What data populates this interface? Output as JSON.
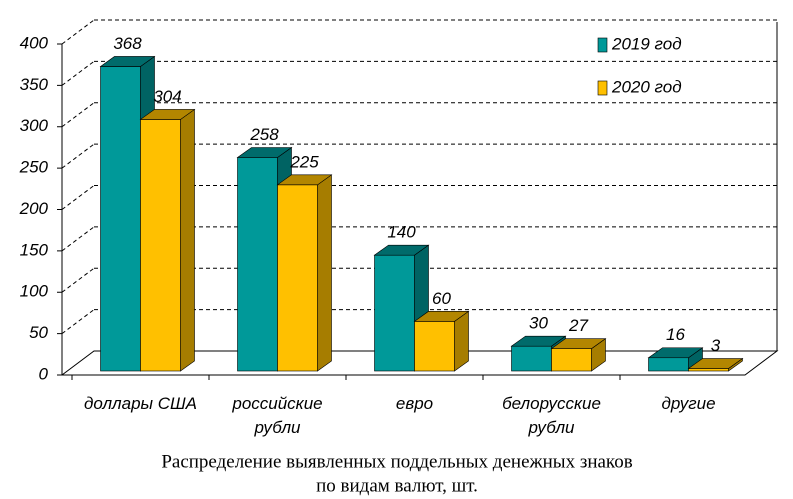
{
  "chart_data": {
    "type": "bar3d",
    "categories": [
      "доллары США",
      "российские\nрубли",
      "евро",
      "белорусские\nрубли",
      "другие"
    ],
    "series": [
      {
        "name": "2019 год",
        "color": "#009999",
        "values": [
          368,
          258,
          140,
          30,
          16
        ]
      },
      {
        "name": "2020 год",
        "color": "#ffc000",
        "values": [
          304,
          225,
          60,
          27,
          3
        ]
      }
    ],
    "ylim": [
      0,
      400
    ],
    "yticks": [
      0,
      50,
      100,
      150,
      200,
      250,
      300,
      350,
      400
    ],
    "grid": true,
    "legend": "top-right",
    "caption": [
      "Распределение выявленных поддельных денежных знаков",
      "по видам валют, шт."
    ]
  }
}
